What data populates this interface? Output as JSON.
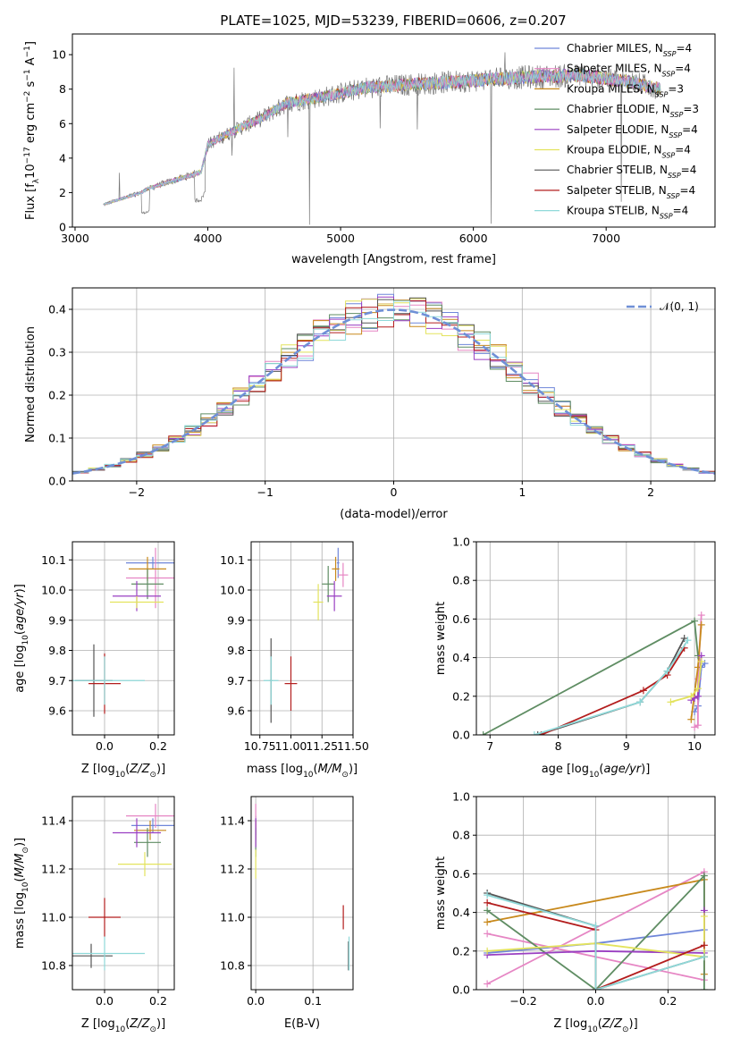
{
  "title": "PLATE=1025, MJD=53239, FIBERID=0606, z=0.207",
  "series_colors": {
    "Chabrier MILES": "#6f86d9",
    "Salpeter MILES": "#e686c4",
    "Kroupa MILES": "#c8891c",
    "Chabrier ELODIE": "#5f8d63",
    "Salpeter ELODIE": "#9a3fc2",
    "Kroupa ELODIE": "#e3e35d",
    "Chabrier STELIB": "#555555",
    "Salpeter STELIB": "#b31d1d",
    "Kroupa STELIB": "#8fd9d9"
  },
  "chart_data": [
    {
      "id": "spectrum",
      "type": "line",
      "title": "PLATE=1025, MJD=53239, FIBERID=0606, z=0.207",
      "xlabel": "wavelength [Angstrom, rest frame]",
      "ylabel_parts": {
        "pre": "Flux [f",
        "sub1": "λ",
        "mid": "10",
        "sup1": "−17",
        "post1": " erg cm",
        "sup2": "−2",
        "post2": " s",
        "sup3": "−1",
        "post3": " A",
        "sup4": "−1",
        "end": "]"
      },
      "xlim": [
        2980,
        7820
      ],
      "ylim": [
        0,
        11.2
      ],
      "xticks": [
        3000,
        4000,
        5000,
        6000,
        7000
      ],
      "yticks": [
        0,
        2,
        4,
        6,
        8,
        10
      ],
      "grid": false,
      "legend_position": "top-right",
      "legend": [
        {
          "label": "Chabrier MILES, N",
          "sub": "SSP",
          "tail": "=4",
          "color": "#6f86d9"
        },
        {
          "label": "Salpeter MILES, N",
          "sub": "SSP",
          "tail": "=4",
          "color": "#e686c4"
        },
        {
          "label": "Kroupa MILES, N",
          "sub": "SSP",
          "tail": "=3",
          "color": "#c8891c"
        },
        {
          "label": "Chabrier ELODIE, N",
          "sub": "SSP",
          "tail": "=3",
          "color": "#5f8d63"
        },
        {
          "label": "Salpeter ELODIE, N",
          "sub": "SSP",
          "tail": "=4",
          "color": "#9a3fc2"
        },
        {
          "label": "Kroupa ELODIE, N",
          "sub": "SSP",
          "tail": "=4",
          "color": "#e3e35d"
        },
        {
          "label": "Chabrier STELIB, N",
          "sub": "SSP",
          "tail": "=4",
          "color": "#555555"
        },
        {
          "label": "Salpeter STELIB, N",
          "sub": "SSP",
          "tail": "=4",
          "color": "#b31d1d"
        },
        {
          "label": "Kroupa STELIB, N",
          "sub": "SSP",
          "tail": "=4",
          "color": "#8fd9d9"
        }
      ],
      "continuum_x": [
        3210,
        3500,
        3540,
        3700,
        3950,
        4000,
        4200,
        4400,
        4600,
        4900,
        5200,
        5600,
        6000,
        6400,
        6800,
        7200,
        7410
      ],
      "continuum_y": [
        1.3,
        2.0,
        2.2,
        2.6,
        3.2,
        4.8,
        5.6,
        6.3,
        7.2,
        7.6,
        8.1,
        8.3,
        8.5,
        8.7,
        8.8,
        8.4,
        8.0
      ]
    },
    {
      "id": "residuals",
      "type": "histogram",
      "xlabel": "(data-model)/error",
      "ylabel": "Normed distribution",
      "xlim": [
        -2.5,
        2.5
      ],
      "ylim": [
        0,
        0.45
      ],
      "xticks": [
        -2,
        -1,
        0,
        1,
        2
      ],
      "yticks": [
        0.0,
        0.1,
        0.2,
        0.3,
        0.4
      ],
      "grid": true,
      "legend_position": "top-right",
      "reference_curve": {
        "label": "𝒩(0, 1)",
        "color": "#6f8fd6",
        "mean": 0,
        "sigma": 1
      }
    },
    {
      "id": "age-vs-Z",
      "type": "errorbar",
      "xlabel": "Z [log10(Z/Z☉)]",
      "ylabel": "age  [log10(age/yr)]",
      "xlim": [
        -0.12,
        0.26
      ],
      "ylim": [
        9.52,
        10.16
      ],
      "xticks": [
        0.0,
        0.2
      ],
      "yticks": [
        9.6,
        9.7,
        9.8,
        9.9,
        10.0,
        10.1
      ],
      "points": [
        {
          "series": "Chabrier MILES",
          "x": 0.18,
          "y": 10.09,
          "xerr": 0.1,
          "yerr": 0.02
        },
        {
          "series": "Salpeter MILES",
          "x": 0.19,
          "y": 10.04,
          "xerr": 0.11,
          "yerr": 0.1
        },
        {
          "series": "Kroupa MILES",
          "x": 0.16,
          "y": 10.07,
          "xerr": 0.07,
          "yerr": 0.04
        },
        {
          "series": "Chabrier ELODIE",
          "x": 0.16,
          "y": 10.02,
          "xerr": 0.06,
          "yerr": 0.05
        },
        {
          "series": "Salpeter ELODIE",
          "x": 0.12,
          "y": 9.98,
          "xerr": 0.09,
          "yerr": 0.05
        },
        {
          "series": "Kroupa ELODIE",
          "x": 0.12,
          "y": 9.96,
          "xerr": 0.1,
          "yerr": 0.02
        },
        {
          "series": "Chabrier STELIB",
          "x": -0.04,
          "y": 9.7,
          "xerr": 0.07,
          "yerr": 0.12
        },
        {
          "series": "Salpeter STELIB",
          "x": 0.0,
          "y": 9.69,
          "xerr": 0.06,
          "yerr": 0.1
        },
        {
          "series": "Kroupa STELIB",
          "x": 0.0,
          "y": 9.7,
          "xerr": 0.15,
          "yerr": 0.08
        }
      ]
    },
    {
      "id": "age-vs-mass",
      "type": "errorbar",
      "xlabel": "mass [log10(M/M☉)]",
      "ylabel": "",
      "xlim": [
        10.68,
        11.5
      ],
      "ylim": [
        9.52,
        10.16
      ],
      "xticks": [
        10.75,
        11.0,
        11.25,
        11.5
      ],
      "xtick_labels": [
        "10.75",
        "11.00",
        "11.25",
        "11.50"
      ],
      "yticks": [
        9.6,
        9.7,
        9.8,
        9.9,
        10.0,
        10.1
      ],
      "points": [
        {
          "series": "Chabrier MILES",
          "x": 11.38,
          "y": 10.09,
          "xerr": 0.01,
          "yerr": 0.05
        },
        {
          "series": "Salpeter MILES",
          "x": 11.42,
          "y": 10.05,
          "xerr": 0.04,
          "yerr": 0.04
        },
        {
          "series": "Kroupa MILES",
          "x": 11.36,
          "y": 10.07,
          "xerr": 0.03,
          "yerr": 0.04
        },
        {
          "series": "Chabrier ELODIE",
          "x": 11.3,
          "y": 10.02,
          "xerr": 0.05,
          "yerr": 0.06
        },
        {
          "series": "Salpeter ELODIE",
          "x": 11.35,
          "y": 9.98,
          "xerr": 0.06,
          "yerr": 0.05
        },
        {
          "series": "Kroupa ELODIE",
          "x": 11.22,
          "y": 9.96,
          "xerr": 0.04,
          "yerr": 0.06
        },
        {
          "series": "Chabrier STELIB",
          "x": 10.84,
          "y": 9.7,
          "xerr": 0.01,
          "yerr": 0.14
        },
        {
          "series": "Salpeter STELIB",
          "x": 11.0,
          "y": 9.69,
          "xerr": 0.05,
          "yerr": 0.09
        },
        {
          "series": "Kroupa STELIB",
          "x": 10.84,
          "y": 9.7,
          "xerr": 0.06,
          "yerr": 0.08
        }
      ]
    },
    {
      "id": "weight-vs-age",
      "type": "line",
      "xlabel": "age  [log10(age/yr)]",
      "ylabel": "mass weight",
      "xlim": [
        6.8,
        10.3
      ],
      "ylim": [
        0,
        1
      ],
      "xticks": [
        7,
        8,
        9,
        10
      ],
      "yticks": [
        0.0,
        0.2,
        0.4,
        0.6,
        0.8,
        1.0
      ],
      "grid": true,
      "series": [
        {
          "name": "Chabrier MILES",
          "x": [
            10.15,
            10.1,
            10.05,
            10.0
          ],
          "y": [
            0.37,
            0.35,
            0.15,
            0.12
          ]
        },
        {
          "name": "Salpeter MILES",
          "x": [
            10.1,
            10.05,
            10.05,
            10.0
          ],
          "y": [
            0.62,
            0.29,
            0.05,
            0.04
          ]
        },
        {
          "name": "Kroupa MILES",
          "x": [
            10.1,
            10.05,
            9.95
          ],
          "y": [
            0.57,
            0.35,
            0.08
          ]
        },
        {
          "name": "Chabrier ELODIE",
          "x": [
            6.9,
            10.0,
            10.05
          ],
          "y": [
            0.0,
            0.59,
            0.41
          ]
        },
        {
          "name": "Salpeter ELODIE",
          "x": [
            10.1,
            10.05,
            10.0,
            9.95
          ],
          "y": [
            0.41,
            0.2,
            0.19,
            0.18
          ]
        },
        {
          "name": "Kroupa ELODIE",
          "x": [
            9.65,
            9.95,
            10.05,
            10.1
          ],
          "y": [
            0.17,
            0.2,
            0.24,
            0.38
          ]
        },
        {
          "name": "Chabrier STELIB",
          "x": [
            7.7,
            9.2,
            9.6,
            9.85
          ],
          "y": [
            0.0,
            0.17,
            0.33,
            0.5
          ]
        },
        {
          "name": "Salpeter STELIB",
          "x": [
            7.75,
            9.25,
            9.6,
            9.85
          ],
          "y": [
            0.0,
            0.23,
            0.31,
            0.45
          ]
        },
        {
          "name": "Kroupa STELIB",
          "x": [
            7.65,
            9.2,
            9.6,
            9.9
          ],
          "y": [
            0.0,
            0.17,
            0.33,
            0.49
          ]
        }
      ]
    },
    {
      "id": "mass-vs-Z",
      "type": "errorbar",
      "xlabel": "Z [log10(Z/Z☉)]",
      "ylabel": "mass [log10(M/M☉)]",
      "xlim": [
        -0.12,
        0.26
      ],
      "ylim": [
        10.7,
        11.5
      ],
      "xticks": [
        0.0,
        0.2
      ],
      "yticks": [
        10.8,
        11.0,
        11.2,
        11.4
      ],
      "points": [
        {
          "series": "Chabrier MILES",
          "x": 0.18,
          "y": 11.38,
          "xerr": 0.08,
          "yerr": 0.03
        },
        {
          "series": "Salpeter MILES",
          "x": 0.19,
          "y": 11.42,
          "xerr": 0.11,
          "yerr": 0.05
        },
        {
          "series": "Kroupa MILES",
          "x": 0.17,
          "y": 11.36,
          "xerr": 0.06,
          "yerr": 0.04
        },
        {
          "series": "Chabrier ELODIE",
          "x": 0.16,
          "y": 11.31,
          "xerr": 0.05,
          "yerr": 0.06
        },
        {
          "series": "Salpeter ELODIE",
          "x": 0.12,
          "y": 11.35,
          "xerr": 0.09,
          "yerr": 0.06
        },
        {
          "series": "Kroupa ELODIE",
          "x": 0.15,
          "y": 11.22,
          "xerr": 0.1,
          "yerr": 0.05
        },
        {
          "series": "Chabrier STELIB",
          "x": -0.05,
          "y": 10.84,
          "xerr": 0.08,
          "yerr": 0.05
        },
        {
          "series": "Salpeter STELIB",
          "x": 0.0,
          "y": 11.0,
          "xerr": 0.06,
          "yerr": 0.08
        },
        {
          "series": "Kroupa STELIB",
          "x": 0.0,
          "y": 10.85,
          "xerr": 0.15,
          "yerr": 0.07
        }
      ]
    },
    {
      "id": "mass-vs-EBV",
      "type": "errorbar",
      "xlabel": "E(B-V)",
      "ylabel": "",
      "xlim": [
        -0.008,
        0.17
      ],
      "ylim": [
        10.7,
        11.5
      ],
      "xticks": [
        0.0,
        0.1
      ],
      "yticks": [
        10.8,
        11.0,
        11.2,
        11.4
      ],
      "points": [
        {
          "series": "Chabrier MILES",
          "x": 0.0,
          "y": 11.38,
          "xerr": 0.0,
          "yerr": 0.04
        },
        {
          "series": "Salpeter MILES",
          "x": 0.0,
          "y": 11.42,
          "xerr": 0.0,
          "yerr": 0.05
        },
        {
          "series": "Kroupa MILES",
          "x": 0.0,
          "y": 11.36,
          "xerr": 0.0,
          "yerr": 0.04
        },
        {
          "series": "Chabrier ELODIE",
          "x": 0.0,
          "y": 11.31,
          "xerr": 0.0,
          "yerr": 0.06
        },
        {
          "series": "Salpeter ELODIE",
          "x": 0.0,
          "y": 11.35,
          "xerr": 0.0,
          "yerr": 0.06
        },
        {
          "series": "Kroupa ELODIE",
          "x": 0.0,
          "y": 11.22,
          "xerr": 0.0,
          "yerr": 0.06
        },
        {
          "series": "Chabrier STELIB",
          "x": 0.162,
          "y": 10.84,
          "xerr": 0.0,
          "yerr": 0.06
        },
        {
          "series": "Salpeter STELIB",
          "x": 0.153,
          "y": 11.0,
          "xerr": 0.0,
          "yerr": 0.05
        },
        {
          "series": "Kroupa STELIB",
          "x": 0.163,
          "y": 10.85,
          "xerr": 0.0,
          "yerr": 0.07
        }
      ]
    },
    {
      "id": "weight-vs-Z",
      "type": "line",
      "xlabel": "Z [log10(Z/Z☉)]",
      "ylabel": "mass weight",
      "xlim": [
        -0.33,
        0.33
      ],
      "ylim": [
        0,
        1
      ],
      "xticks": [
        -0.2,
        0.0,
        0.2
      ],
      "yticks": [
        0.0,
        0.2,
        0.4,
        0.6,
        0.8,
        1.0
      ],
      "grid": true,
      "series": [
        {
          "name": "Chabrier MILES",
          "x": [
            -0.3,
            0.0,
            0.3
          ],
          "y": [
            0.19,
            0.24,
            0.31
          ]
        },
        {
          "name": "Salpeter MILES",
          "x": [
            -0.3,
            0.3,
            0.3,
            -0.3
          ],
          "y": [
            0.03,
            0.61,
            0.05,
            0.29
          ]
        },
        {
          "name": "Kroupa MILES",
          "x": [
            -0.3,
            0.3,
            0.3
          ],
          "y": [
            0.35,
            0.57,
            0.08
          ]
        },
        {
          "name": "Chabrier ELODIE",
          "x": [
            -0.3,
            0.0,
            0.3,
            0.3
          ],
          "y": [
            0.41,
            0.0,
            0.59,
            0.0
          ]
        },
        {
          "name": "Salpeter ELODIE",
          "x": [
            -0.3,
            0.0,
            0.3,
            0.3
          ],
          "y": [
            0.18,
            0.2,
            0.19,
            0.41
          ]
        },
        {
          "name": "Kroupa ELODIE",
          "x": [
            -0.3,
            0.0,
            0.3,
            0.3
          ],
          "y": [
            0.2,
            0.24,
            0.17,
            0.38
          ]
        },
        {
          "name": "Chabrier STELIB",
          "x": [
            -0.3,
            0.0,
            0.0,
            0.3
          ],
          "y": [
            0.5,
            0.33,
            0.0,
            0.17
          ]
        },
        {
          "name": "Salpeter STELIB",
          "x": [
            -0.3,
            0.0,
            0.0,
            0.3
          ],
          "y": [
            0.45,
            0.31,
            0.0,
            0.23
          ]
        },
        {
          "name": "Kroupa STELIB",
          "x": [
            -0.3,
            0.0,
            0.0,
            0.3
          ],
          "y": [
            0.49,
            0.33,
            0.0,
            0.17
          ]
        }
      ]
    }
  ]
}
